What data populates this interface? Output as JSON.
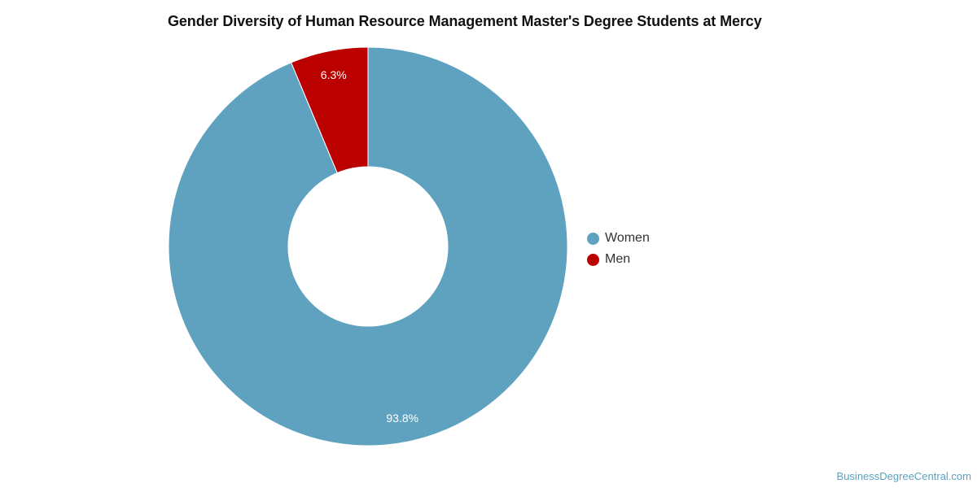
{
  "chart_data": {
    "type": "pie",
    "title": "Gender Diversity of Human Resource Management Master's Degree Students at Mercy",
    "categories": [
      "Women",
      "Men"
    ],
    "values": [
      93.8,
      6.3
    ],
    "labels": [
      "93.8%",
      "6.3%"
    ],
    "colors": [
      "#5ea2bf",
      "#bb0000"
    ],
    "donut": true,
    "legend_position": "right"
  },
  "footer": {
    "source": "BusinessDegreeCentral.com"
  }
}
